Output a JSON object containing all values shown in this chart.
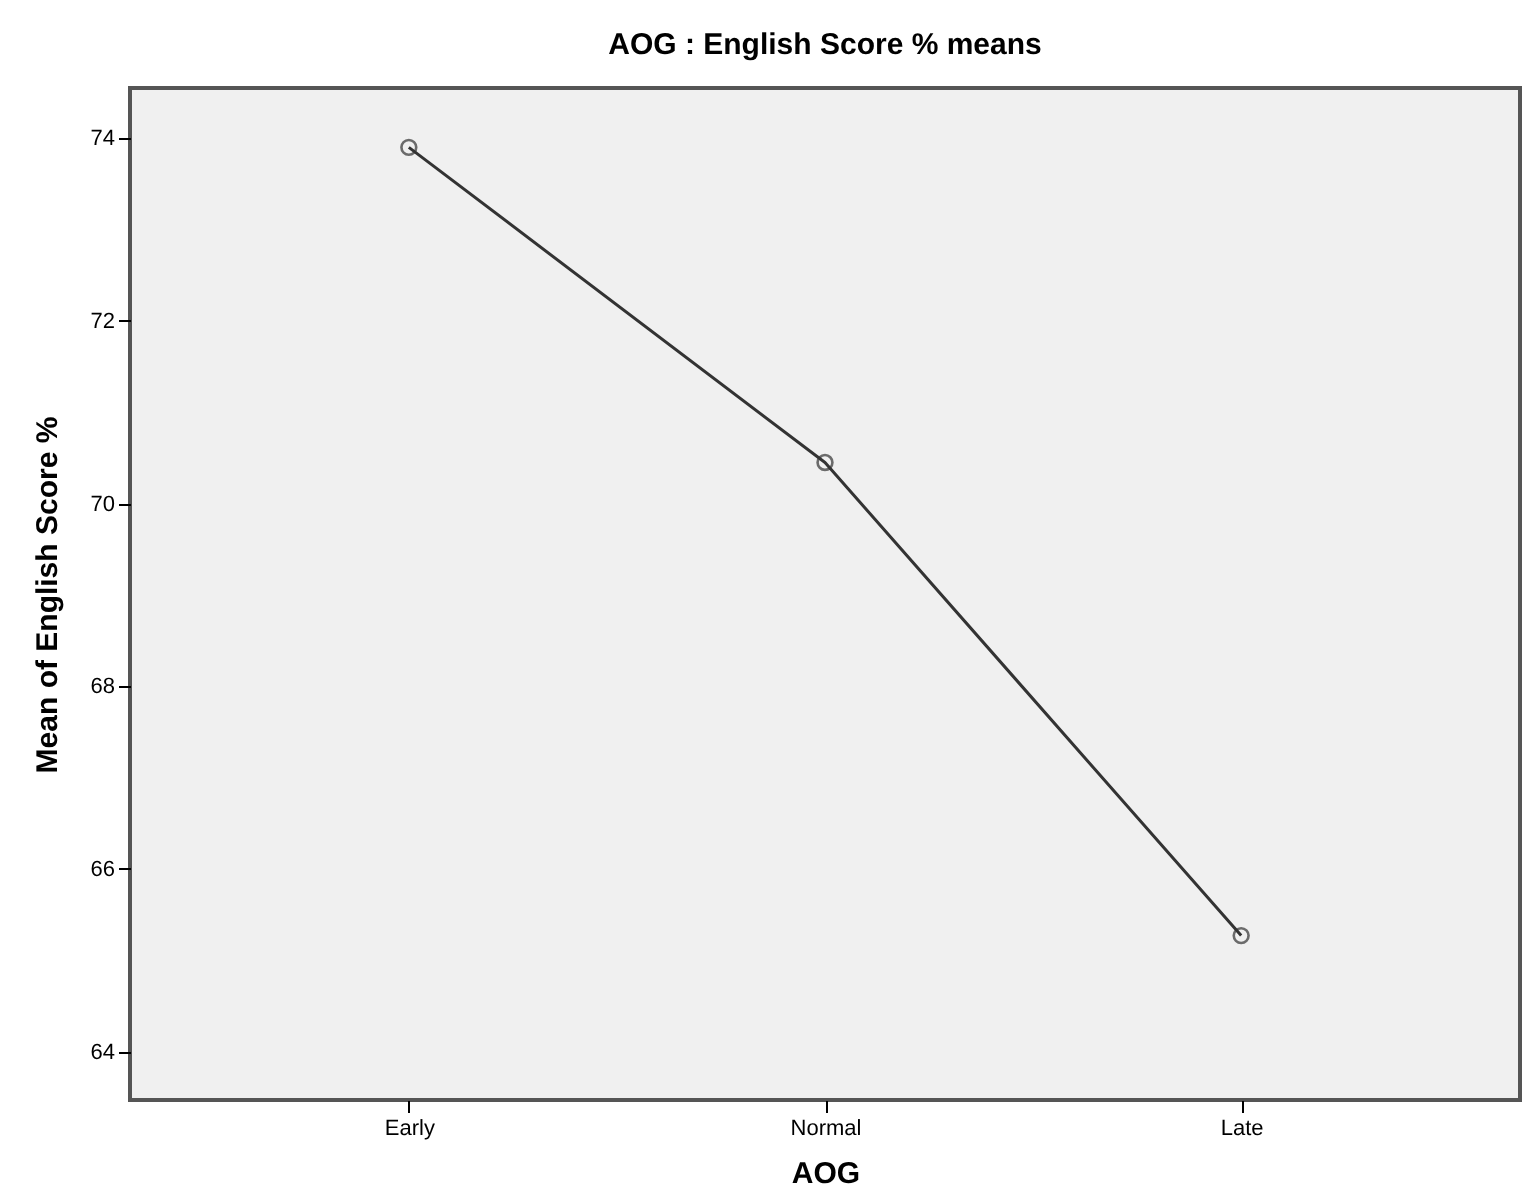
{
  "chart_data": {
    "type": "line",
    "title": "AOG : English Score % means",
    "xlabel": "AOG",
    "ylabel": "Mean of English Score %",
    "categories": [
      "Early",
      "Normal",
      "Late"
    ],
    "values": [
      73.9,
      70.45,
      65.27
    ],
    "color": "#333333",
    "ylim": [
      63.47,
      74.55
    ],
    "yticks": [
      64,
      66,
      68,
      70,
      72,
      74
    ],
    "grid": false,
    "marker": "circle",
    "line_style": "solid"
  }
}
